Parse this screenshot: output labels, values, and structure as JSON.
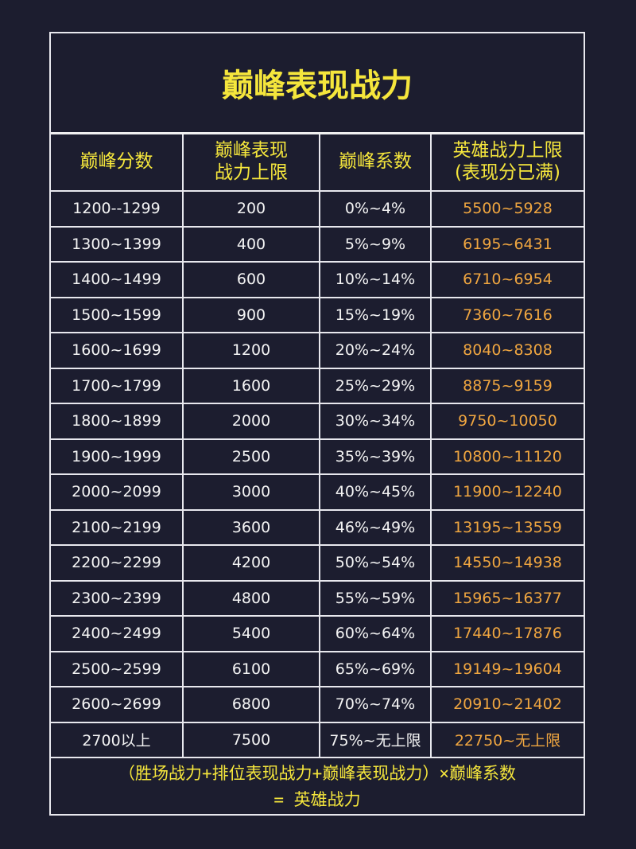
{
  "title": "巅峰表现战力",
  "table": {
    "header": [
      "巅峰分数",
      "巅峰表现\n战力上限",
      "巅峰系数",
      "英雄战力上限\n(表现分已满)"
    ],
    "rows": [
      [
        "1200--1299",
        "200",
        "0%~4%",
        "5500~5928"
      ],
      [
        "1300~1399",
        "400",
        "5%~9%",
        "6195~6431"
      ],
      [
        "1400~1499",
        "600",
        "10%~14%",
        "6710~6954"
      ],
      [
        "1500~1599",
        "900",
        "15%~19%",
        "7360~7616"
      ],
      [
        "1600~1699",
        "1200",
        "20%~24%",
        "8040~8308"
      ],
      [
        "1700~1799",
        "1600",
        "25%~29%",
        "8875~9159"
      ],
      [
        "1800~1899",
        "2000",
        "30%~34%",
        "9750~10050"
      ],
      [
        "1900~1999",
        "2500",
        "35%~39%",
        "10800~11120"
      ],
      [
        "2000~2099",
        "3000",
        "40%~45%",
        "11900~12240"
      ],
      [
        "2100~2199",
        "3600",
        "46%~49%",
        "13195~13559"
      ],
      [
        "2200~2299",
        "4200",
        "50%~54%",
        "14550~14938"
      ],
      [
        "2300~2399",
        "4800",
        "55%~59%",
        "15965~16377"
      ],
      [
        "2400~2499",
        "5400",
        "60%~64%",
        "17440~17876"
      ],
      [
        "2500~2599",
        "6100",
        "65%~69%",
        "19149~19604"
      ],
      [
        "2600~2699",
        "6800",
        "70%~74%",
        "20910~21402"
      ],
      [
        "2700以上",
        "7500",
        "75%~无上限",
        "22750~无上限"
      ]
    ]
  },
  "formula": "（胜场战力+排位表现战力+巅峰表现战力）×巅峰系数\n= 英雄战力"
}
